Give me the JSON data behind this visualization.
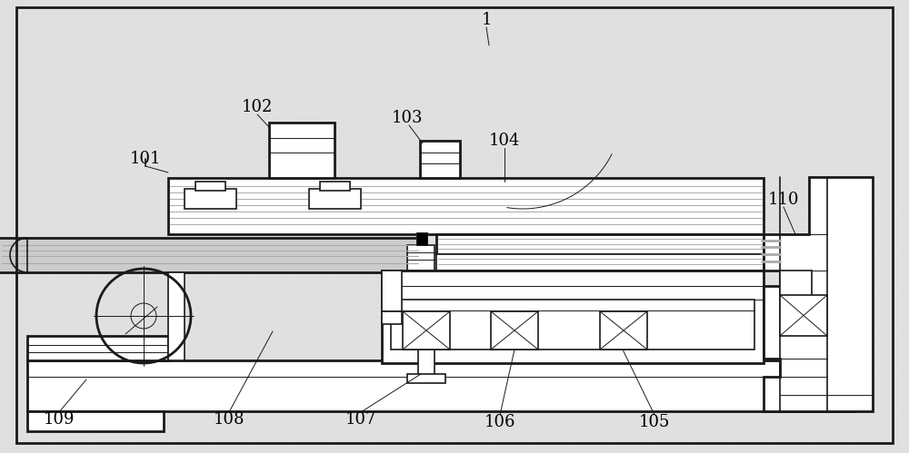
{
  "bg_color": "#e0e0e0",
  "lc": "#1a1a1a",
  "gray1": "#aaaaaa",
  "gray2": "#cccccc",
  "dot_color": "#c0c0c0",
  "white": "#ffffff"
}
